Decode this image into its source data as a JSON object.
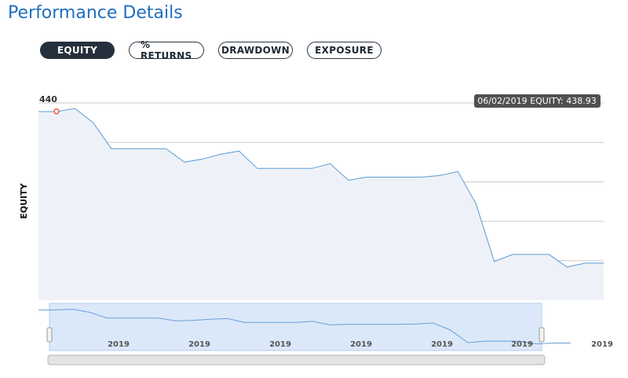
{
  "page": {
    "title": "Performance Details"
  },
  "tabs": [
    {
      "label": "EQUITY",
      "active": true
    },
    {
      "label": "% RETURNS",
      "active": false
    },
    {
      "label": "DRAWDOWN",
      "active": false
    },
    {
      "label": "EXPOSURE",
      "active": false
    }
  ],
  "tooltip": {
    "text": "06/02/2019 EQUITY: 438.93"
  },
  "navigator": {
    "ticks": [
      "2019",
      "2019",
      "2019",
      "2019",
      "2019",
      "2019",
      "2019"
    ]
  },
  "colors": {
    "title": "#1f6fbf",
    "line": "#5b9bd5",
    "area": "#eef2f8",
    "marker": "#e8553a",
    "navigator_selection": "#dbe8fa"
  },
  "chart_data": {
    "type": "area",
    "ylabel": "EQUITY",
    "ylim": [
      415,
      440
    ],
    "yticks": [
      440,
      435,
      430,
      425,
      420,
      415
    ],
    "grid": true,
    "values": [
      438.9,
      438.9,
      439.3,
      437.5,
      434.2,
      434.2,
      434.2,
      434.2,
      432.5,
      432.9,
      433.5,
      433.9,
      431.7,
      431.7,
      431.7,
      431.7,
      432.3,
      430.2,
      430.6,
      430.6,
      430.6,
      430.6,
      430.8,
      431.3,
      427.2,
      419.9,
      420.8,
      420.8,
      420.8,
      419.2,
      419.7,
      419.7
    ],
    "highlight": {
      "index": 1,
      "label": "06/02/2019",
      "value": 438.93
    }
  }
}
